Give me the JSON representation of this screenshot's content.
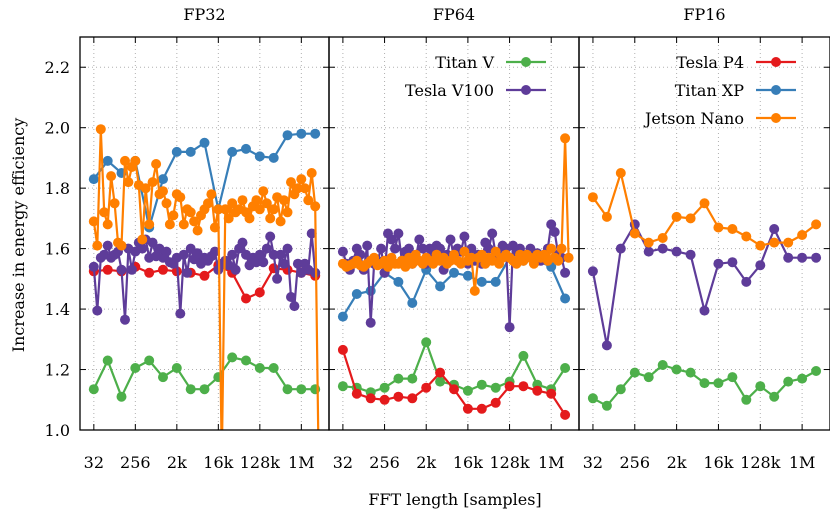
{
  "ylabel": "Increase in energy efficiency",
  "xlabel": "FFT length [samples]",
  "yticks": [
    "1.0",
    "1.2",
    "1.4",
    "1.6",
    "1.8",
    "2.0",
    "2.2"
  ],
  "xticks": [
    "32",
    "256",
    "2k",
    "16k",
    "128k",
    "1M"
  ],
  "legend": [
    {
      "name": "Titan V",
      "color": "#4daf4a"
    },
    {
      "name": "Tesla V100",
      "color": "#5e3c99"
    },
    {
      "name": "Tesla P4",
      "color": "#e41a1c"
    },
    {
      "name": "Titan XP",
      "color": "#377eb8"
    },
    {
      "name": "Jetson Nano",
      "color": "#ff7f00"
    }
  ],
  "chart_data": [
    {
      "type": "line",
      "title": "FP32",
      "x_scale": "log2",
      "xlim": [
        16,
        4194304
      ],
      "ylim": [
        1.0,
        2.3
      ],
      "grid": true,
      "series": [
        {
          "name": "Titan V",
          "color": "#4daf4a",
          "log2x": [
            5,
            6,
            7,
            8,
            9,
            10,
            11,
            12,
            13,
            14,
            15,
            16,
            17,
            18,
            19,
            20,
            21
          ],
          "y": [
            1.135,
            1.23,
            1.11,
            1.205,
            1.23,
            1.175,
            1.205,
            1.135,
            1.135,
            1.175,
            1.24,
            1.23,
            1.205,
            1.205,
            1.135,
            1.135,
            1.135
          ]
        },
        {
          "name": "Tesla P4",
          "color": "#e41a1c",
          "log2x": [
            5,
            6,
            7,
            8,
            9,
            10,
            11,
            12,
            13,
            14,
            15,
            16,
            17,
            18,
            19,
            20,
            21
          ],
          "y": [
            1.525,
            1.53,
            1.525,
            1.54,
            1.52,
            1.53,
            1.525,
            1.52,
            1.51,
            1.545,
            1.52,
            1.435,
            1.455,
            1.535,
            1.53,
            1.52,
            1.51
          ]
        },
        {
          "name": "Titan XP",
          "color": "#377eb8",
          "log2x": [
            5,
            6,
            7,
            8,
            9,
            10,
            11,
            12,
            13,
            14,
            15,
            16,
            17,
            18,
            19,
            20,
            21
          ],
          "y": [
            1.83,
            1.89,
            1.85,
            1.89,
            1.67,
            1.83,
            1.92,
            1.92,
            1.95,
            1.73,
            1.92,
            1.93,
            1.905,
            1.9,
            1.975,
            1.98,
            1.98
          ]
        },
        {
          "name": "Tesla V100",
          "color": "#5e3c99",
          "log2x": [
            5,
            5.25,
            5.5,
            5.75,
            6,
            6.25,
            6.5,
            6.75,
            7,
            7.25,
            7.5,
            7.75,
            8,
            8.25,
            8.5,
            8.75,
            9,
            9.25,
            9.5,
            9.75,
            10,
            10.25,
            10.5,
            10.75,
            11,
            11.25,
            11.5,
            11.75,
            12,
            12.25,
            12.5,
            12.75,
            13,
            13.25,
            13.5,
            13.75,
            14,
            14.25,
            14.5,
            14.75,
            15,
            15.25,
            15.5,
            15.75,
            16,
            16.25,
            16.5,
            16.75,
            17,
            17.25,
            17.5,
            17.75,
            18,
            18.25,
            18.5,
            18.75,
            19,
            19.25,
            19.5,
            19.75,
            20,
            20.25,
            20.5,
            20.75,
            21
          ],
          "y": [
            1.54,
            1.395,
            1.57,
            1.58,
            1.61,
            1.57,
            1.58,
            1.59,
            1.53,
            1.365,
            1.6,
            1.53,
            1.59,
            1.62,
            1.6,
            1.63,
            1.57,
            1.62,
            1.575,
            1.6,
            1.57,
            1.59,
            1.555,
            1.55,
            1.57,
            1.385,
            1.58,
            1.52,
            1.6,
            1.565,
            1.585,
            1.55,
            1.57,
            1.56,
            1.575,
            1.59,
            1.53,
            1.55,
            1.56,
            1.545,
            1.58,
            1.53,
            1.6,
            1.62,
            1.58,
            1.545,
            1.57,
            1.555,
            1.58,
            1.555,
            1.6,
            1.64,
            1.58,
            1.5,
            1.58,
            1.55,
            1.6,
            1.44,
            1.41,
            1.55,
            1.52,
            1.55,
            1.53,
            1.65,
            1.52
          ]
        },
        {
          "name": "Jetson Nano",
          "color": "#ff7f00",
          "log2x": [
            5,
            5.25,
            5.5,
            5.75,
            6,
            6.25,
            6.5,
            6.75,
            7,
            7.25,
            7.5,
            7.75,
            8,
            8.25,
            8.5,
            8.75,
            9,
            9.25,
            9.5,
            9.75,
            10,
            10.25,
            10.5,
            10.75,
            11,
            11.25,
            11.5,
            11.75,
            12,
            12.25,
            12.5,
            12.75,
            13,
            13.25,
            13.5,
            13.75,
            14,
            14.25,
            14.5,
            14.75,
            15,
            15.25,
            15.5,
            15.75,
            16,
            16.25,
            16.5,
            16.75,
            17,
            17.25,
            17.5,
            17.75,
            18,
            18.25,
            18.5,
            18.75,
            19,
            19.25,
            19.5,
            19.75,
            20,
            20.25,
            20.5,
            20.75,
            21,
            21.25
          ],
          "y": [
            1.69,
            1.61,
            1.995,
            1.72,
            1.68,
            1.84,
            1.75,
            1.62,
            1.61,
            1.89,
            1.82,
            1.87,
            1.89,
            1.81,
            1.63,
            1.8,
            1.68,
            1.82,
            1.88,
            1.78,
            1.79,
            1.75,
            1.68,
            1.71,
            1.78,
            1.77,
            1.68,
            1.73,
            1.72,
            1.69,
            1.66,
            1.71,
            1.73,
            1.75,
            1.78,
            1.67,
            1.73,
            0.9,
            1.73,
            1.7,
            1.75,
            1.72,
            1.73,
            1.76,
            1.72,
            1.7,
            1.74,
            1.76,
            1.73,
            1.79,
            1.75,
            1.7,
            1.73,
            1.77,
            1.69,
            1.76,
            1.72,
            1.82,
            1.78,
            1.8,
            1.83,
            1.8,
            1.76,
            1.85,
            1.74,
            0.9
          ]
        }
      ]
    },
    {
      "type": "line",
      "title": "FP64",
      "x_scale": "log2",
      "xlim": [
        16,
        4194304
      ],
      "ylim": [
        1.0,
        2.3
      ],
      "grid": true,
      "legend_placement": "top-right",
      "series": [
        {
          "name": "Titan V",
          "color": "#4daf4a",
          "log2x": [
            5,
            6,
            7,
            8,
            9,
            10,
            11,
            12,
            13,
            14,
            15,
            16,
            17,
            18,
            19,
            20,
            21
          ],
          "y": [
            1.145,
            1.14,
            1.125,
            1.14,
            1.17,
            1.17,
            1.29,
            1.16,
            1.15,
            1.13,
            1.15,
            1.14,
            1.16,
            1.245,
            1.15,
            1.135,
            1.205
          ]
        },
        {
          "name": "Tesla P4",
          "color": "#e41a1c",
          "log2x": [
            5,
            6,
            7,
            8,
            9,
            10,
            11,
            12,
            13,
            14,
            15,
            16,
            17,
            18,
            19,
            20,
            21
          ],
          "y": [
            1.265,
            1.12,
            1.105,
            1.1,
            1.11,
            1.105,
            1.14,
            1.19,
            1.135,
            1.07,
            1.07,
            1.09,
            1.145,
            1.145,
            1.13,
            1.12,
            1.05
          ]
        },
        {
          "name": "Titan XP",
          "color": "#377eb8",
          "log2x": [
            5,
            6,
            7,
            8,
            9,
            10,
            11,
            12,
            13,
            14,
            15,
            16,
            17,
            18,
            19,
            20,
            21
          ],
          "y": [
            1.375,
            1.45,
            1.46,
            1.52,
            1.49,
            1.42,
            1.53,
            1.475,
            1.52,
            1.51,
            1.49,
            1.49,
            1.57,
            1.56,
            1.56,
            1.54,
            1.435
          ]
        },
        {
          "name": "Tesla V100",
          "color": "#5e3c99",
          "log2x": [
            5,
            5.25,
            5.5,
            5.75,
            6,
            6.25,
            6.5,
            6.75,
            7,
            7.25,
            7.5,
            7.75,
            8,
            8.25,
            8.5,
            8.75,
            9,
            9.25,
            9.5,
            9.75,
            10,
            10.25,
            10.5,
            10.75,
            11,
            11.25,
            11.5,
            11.75,
            12,
            12.25,
            12.5,
            12.75,
            13,
            13.25,
            13.5,
            13.75,
            14,
            14.25,
            14.5,
            14.75,
            15,
            15.25,
            15.5,
            15.75,
            16,
            16.25,
            16.5,
            16.75,
            17,
            17.25,
            17.5,
            17.75,
            18,
            18.25,
            18.5,
            18.75,
            19,
            19.25,
            19.5,
            19.75,
            20,
            20.25,
            20.5,
            20.75,
            21
          ],
          "y": [
            1.59,
            1.55,
            1.53,
            1.56,
            1.6,
            1.58,
            1.53,
            1.61,
            1.355,
            1.55,
            1.56,
            1.6,
            1.52,
            1.65,
            1.63,
            1.6,
            1.65,
            1.56,
            1.59,
            1.6,
            1.55,
            1.57,
            1.63,
            1.6,
            1.55,
            1.6,
            1.575,
            1.61,
            1.6,
            1.53,
            1.58,
            1.63,
            1.57,
            1.6,
            1.59,
            1.64,
            1.55,
            1.6,
            1.56,
            1.58,
            1.55,
            1.62,
            1.6,
            1.65,
            1.58,
            1.57,
            1.61,
            1.6,
            1.34,
            1.61,
            1.59,
            1.6,
            1.57,
            1.58,
            1.6,
            1.57,
            1.585,
            1.56,
            1.58,
            1.6,
            1.68,
            1.655,
            1.58,
            1.57,
            1.52
          ]
        },
        {
          "name": "Jetson Nano",
          "color": "#ff7f00",
          "log2x": [
            5,
            5.25,
            5.5,
            5.75,
            6,
            6.25,
            6.5,
            6.75,
            7,
            7.25,
            7.5,
            7.75,
            8,
            8.25,
            8.5,
            8.75,
            9,
            9.25,
            9.5,
            9.75,
            10,
            10.25,
            10.5,
            10.75,
            11,
            11.25,
            11.5,
            11.75,
            12,
            12.25,
            12.5,
            12.75,
            13,
            13.25,
            13.5,
            13.75,
            14,
            14.25,
            14.5,
            14.75,
            15,
            15.25,
            15.5,
            15.75,
            16,
            16.25,
            16.5,
            16.75,
            17,
            17.25,
            17.5,
            17.75,
            18,
            18.25,
            18.5,
            18.75,
            19,
            19.25,
            19.5,
            19.75,
            20,
            20.25,
            20.5,
            20.75,
            21,
            21.25
          ],
          "y": [
            1.55,
            1.54,
            1.545,
            1.55,
            1.56,
            1.545,
            1.54,
            1.55,
            1.56,
            1.57,
            1.545,
            1.55,
            1.56,
            1.54,
            1.57,
            1.55,
            1.55,
            1.56,
            1.54,
            1.57,
            1.55,
            1.58,
            1.56,
            1.55,
            1.57,
            1.56,
            1.55,
            1.58,
            1.56,
            1.57,
            1.55,
            1.56,
            1.58,
            1.56,
            1.55,
            1.59,
            1.56,
            1.57,
            1.46,
            1.57,
            1.58,
            1.55,
            1.57,
            1.56,
            1.59,
            1.55,
            1.57,
            1.58,
            1.57,
            1.56,
            1.55,
            1.58,
            1.56,
            1.58,
            1.57,
            1.55,
            1.58,
            1.57,
            1.58,
            1.56,
            1.6,
            1.57,
            1.56,
            1.6,
            1.965,
            1.57
          ]
        }
      ]
    },
    {
      "type": "line",
      "title": "FP16",
      "x_scale": "log2",
      "xlim": [
        16,
        4194304
      ],
      "ylim": [
        1.0,
        2.3
      ],
      "grid": true,
      "legend_placement": "top-right",
      "series": [
        {
          "name": "Titan V",
          "color": "#4daf4a",
          "log2x": [
            5,
            6,
            7,
            8,
            9,
            10,
            11,
            12,
            13,
            14,
            15,
            16,
            17,
            18,
            19,
            20,
            21
          ],
          "y": [
            1.105,
            1.08,
            1.135,
            1.19,
            1.175,
            1.215,
            1.2,
            1.19,
            1.155,
            1.155,
            1.175,
            1.1,
            1.145,
            1.11,
            1.16,
            1.17,
            1.195
          ]
        },
        {
          "name": "Tesla V100",
          "color": "#5e3c99",
          "log2x": [
            5,
            6,
            7,
            8,
            9,
            10,
            11,
            12,
            13,
            14,
            15,
            16,
            17,
            18,
            19,
            20,
            21
          ],
          "y": [
            1.525,
            1.28,
            1.6,
            1.68,
            1.59,
            1.6,
            1.59,
            1.58,
            1.395,
            1.55,
            1.555,
            1.49,
            1.545,
            1.665,
            1.57,
            1.57,
            1.57
          ]
        },
        {
          "name": "Jetson Nano",
          "color": "#ff7f00",
          "log2x": [
            5,
            6,
            7,
            8,
            9,
            10,
            11,
            12,
            13,
            14,
            15,
            16,
            17,
            18,
            19,
            20,
            21
          ],
          "y": [
            1.77,
            1.705,
            1.85,
            1.65,
            1.62,
            1.635,
            1.705,
            1.7,
            1.75,
            1.67,
            1.665,
            1.64,
            1.61,
            1.62,
            1.62,
            1.645,
            1.68
          ]
        }
      ]
    }
  ]
}
